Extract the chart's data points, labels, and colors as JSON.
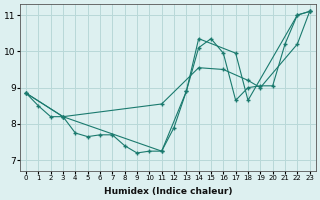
{
  "title": "",
  "xlabel": "Humidex (Indice chaleur)",
  "ylabel": "",
  "background_color": "#ddf0f0",
  "grid_color": "#b8d8d8",
  "line_color": "#1a7a6e",
  "xlim": [
    -0.5,
    23.5
  ],
  "ylim": [
    6.7,
    11.3
  ],
  "yticks": [
    7,
    8,
    9,
    10,
    11
  ],
  "xticks": [
    0,
    1,
    2,
    3,
    4,
    5,
    6,
    7,
    8,
    9,
    10,
    11,
    12,
    13,
    14,
    15,
    16,
    17,
    18,
    19,
    20,
    21,
    22,
    23
  ],
  "line1_x": [
    0,
    1,
    2,
    3,
    4,
    5,
    6,
    7,
    8,
    9,
    10,
    11,
    12,
    13,
    14,
    15,
    16,
    17,
    18,
    19,
    20,
    21,
    22,
    23
  ],
  "line1_y": [
    8.85,
    8.5,
    8.2,
    8.2,
    7.75,
    7.65,
    7.7,
    7.7,
    7.4,
    7.2,
    7.25,
    7.25,
    7.9,
    8.9,
    10.1,
    10.35,
    9.95,
    8.65,
    9.0,
    9.05,
    9.05,
    10.2,
    11.0,
    11.1
  ],
  "line2_x": [
    0,
    3,
    11,
    14,
    16,
    18,
    19,
    22,
    23
  ],
  "line2_y": [
    8.85,
    8.2,
    8.55,
    9.55,
    9.5,
    9.2,
    9.0,
    10.2,
    11.1
  ],
  "line3_x": [
    0,
    3,
    11,
    13,
    14,
    17,
    18,
    22,
    23
  ],
  "line3_y": [
    8.85,
    8.2,
    7.25,
    8.9,
    10.35,
    9.95,
    8.65,
    11.0,
    11.1
  ]
}
